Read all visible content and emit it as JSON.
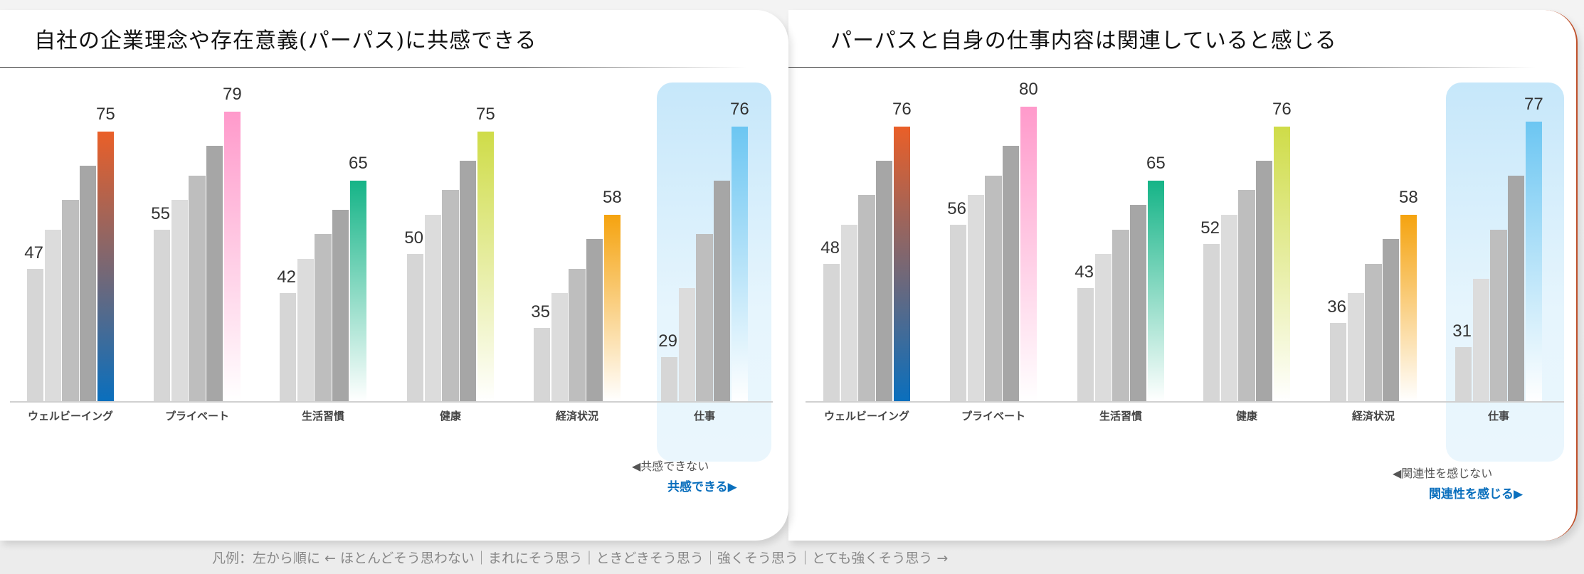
{
  "legend": "凡例：左から順に ← ほとんどそう思わない｜まれにそう思う｜ときどきそう思う｜強くそう思う｜とても強くそう思う →",
  "chart_data": [
    {
      "type": "bar",
      "title": "自社の企業理念や存在意義(パーパス)に共感できる",
      "categories": [
        "ウェルビーイング",
        "プライベート",
        "生活習慣",
        "健康",
        "経済状況",
        "仕事"
      ],
      "ylim": [
        20,
        82
      ],
      "grid": false,
      "highlight_category": "仕事",
      "series": [
        {
          "values": [
            47,
            55,
            42,
            50,
            35,
            29
          ]
        },
        {
          "values": [
            55,
            61,
            49,
            58,
            42,
            43
          ]
        },
        {
          "values": [
            61,
            66,
            54,
            63,
            47,
            54
          ]
        },
        {
          "values": [
            68,
            72,
            59,
            69,
            53,
            65
          ]
        },
        {
          "values": [
            75,
            79,
            65,
            75,
            58,
            76
          ]
        }
      ],
      "labeled_values": {
        "first": [
          47,
          55,
          42,
          50,
          35,
          29
        ],
        "last": [
          75,
          79,
          65,
          75,
          58,
          76
        ]
      },
      "annotation_negative": "◀共感できない",
      "annotation_positive": "共感できる▶"
    },
    {
      "type": "bar",
      "title": "パーパスと自身の仕事内容は関連していると感じる",
      "categories": [
        "ウェルビーイング",
        "プライベート",
        "生活習慣",
        "健康",
        "経済状況",
        "仕事"
      ],
      "ylim": [
        20,
        82
      ],
      "grid": false,
      "highlight_category": "仕事",
      "series": [
        {
          "values": [
            48,
            56,
            43,
            52,
            36,
            31
          ]
        },
        {
          "values": [
            56,
            62,
            50,
            58,
            42,
            45
          ]
        },
        {
          "values": [
            62,
            66,
            55,
            63,
            48,
            55
          ]
        },
        {
          "values": [
            69,
            72,
            60,
            69,
            53,
            66
          ]
        },
        {
          "values": [
            76,
            80,
            65,
            76,
            58,
            77
          ]
        }
      ],
      "labeled_values": {
        "first": [
          48,
          56,
          43,
          52,
          36,
          31
        ],
        "last": [
          76,
          80,
          65,
          76,
          58,
          77
        ]
      },
      "annotation_negative": "◀関連性を感じない",
      "annotation_positive": "関連性を感じる▶"
    }
  ],
  "colors": {
    "grey_bars": [
      "#d6d6d6",
      "#dcdcdc",
      "#bebebe",
      "#a6a6a6"
    ],
    "accent_bars": [
      [
        "#ea5f28",
        "#0a6fbd"
      ],
      [
        "#ff9acb",
        "#ffffff"
      ],
      [
        "#15b487",
        "#ffffff"
      ],
      [
        "#cfdc48",
        "#ffffff"
      ],
      [
        "#f5a30f",
        "#ffffff"
      ],
      [
        "#6cc6f2",
        "#ffffff"
      ]
    ],
    "positive_text": "#0a6fbd"
  }
}
